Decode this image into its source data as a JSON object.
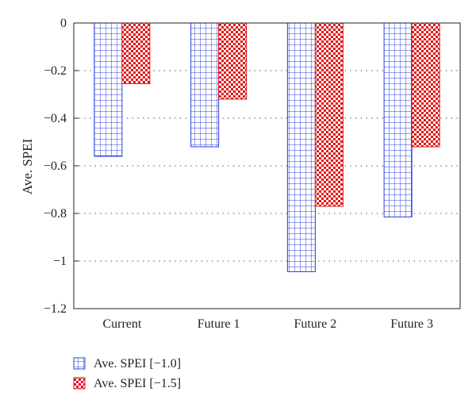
{
  "chart_data": {
    "type": "bar",
    "categories": [
      "Current",
      "Future 1",
      "Future 2",
      "Future 3"
    ],
    "series": [
      {
        "name": "Ave. SPEI [−1.0]",
        "values": [
          -0.56,
          -0.52,
          -1.045,
          -0.815
        ],
        "color": "#2b3fe0",
        "pattern": "grid"
      },
      {
        "name": "Ave. SPEI [−1.5]",
        "values": [
          -0.255,
          -0.32,
          -0.77,
          -0.52
        ],
        "color": "#e01a1a",
        "pattern": "checker"
      }
    ],
    "ylabel": "Ave. SPEI",
    "xlabel": "",
    "ylim": [
      -1.2,
      0
    ],
    "yticks": [
      0,
      -0.2,
      -0.4,
      -0.6,
      -0.8,
      -1,
      -1.2
    ],
    "ytick_labels": [
      "0",
      "−0.2",
      "−0.4",
      "−0.6",
      "−0.8",
      "−1",
      "−1.2"
    ],
    "grid": "horizontal-dotted",
    "legend": "bottom-left"
  }
}
